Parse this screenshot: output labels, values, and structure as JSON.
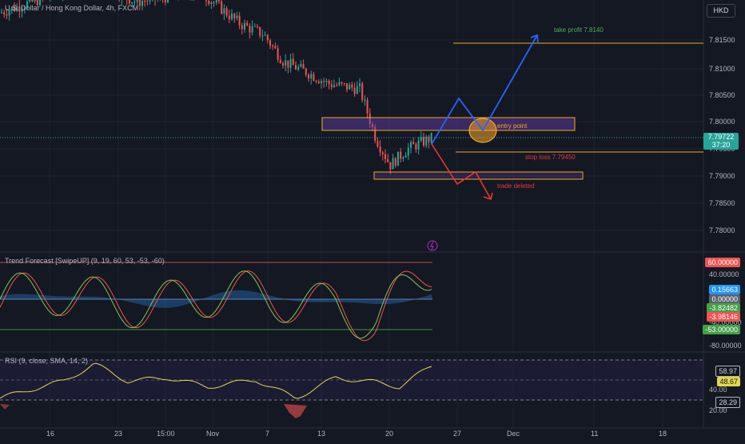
{
  "header": {
    "title": "U.S. Dollar / Hong Kong Dollar, 4h, FXCM",
    "currency_button": "HKD"
  },
  "price_axis": {
    "ticks": [
      "7.81500",
      "7.81000",
      "7.80500",
      "7.80000",
      "7.79500",
      "7.79000",
      "7.78500",
      "7.78000"
    ],
    "current_price": "7.79722",
    "countdown": "37:20"
  },
  "time_axis": {
    "ticks": [
      "16",
      "23",
      "15:00",
      "Nov",
      "7",
      "13",
      "20",
      "27",
      "Dec",
      "11",
      "18"
    ]
  },
  "annotations": {
    "take_profit": "take profit 7.8140",
    "entry": "entry point",
    "stop_loss": "stop loss 7.79450",
    "deleted": "trade deleted"
  },
  "trend_panel": {
    "title": "Trend Forecast [SwipeUP] (9, 19, 60, 53, -53, -60)",
    "ticks": [
      "40.00000",
      "0.00000",
      "-40.00000",
      "-80.00000"
    ],
    "tags": [
      "60.00000",
      "0.15663",
      "0.00000",
      "-3.82482",
      "-3.98146",
      "-53.00000"
    ]
  },
  "rsi_panel": {
    "title": "RSI (9, close, SMA, 14, 2)",
    "ticks": [
      "40.00",
      "20.00"
    ],
    "tags": [
      "58.97",
      "48.67",
      "28.29"
    ]
  },
  "colors": {
    "bg": "#141823",
    "up": "#26a69a",
    "down": "#ef5350",
    "levels": "#f5a623",
    "tp": "#4caf50",
    "blue": "#2962ff",
    "red": "#e53935",
    "rsi": "#e2d84b"
  },
  "chart_data": {
    "type": "line",
    "title": "U.S. Dollar / Hong Kong Dollar, 4h, FXCM",
    "approx_close_path": {
      "dates": [
        "Oct 16",
        "Oct 23",
        "Oct 31",
        "Nov 7",
        "Nov 10",
        "Nov 13",
        "Nov 16",
        "Nov 20",
        "Nov 24"
      ],
      "values": [
        7.822,
        7.826,
        7.821,
        7.816,
        7.809,
        7.807,
        7.803,
        7.791,
        7.797
      ]
    },
    "levels": {
      "take_profit": 7.814,
      "entry_zone": [
        7.7982,
        7.7998
      ],
      "stop_loss": 7.7945,
      "support_zone": [
        7.7899,
        7.7907
      ],
      "current": 7.79722
    },
    "ylim": [
      7.776,
      7.822
    ],
    "trend_levels": {
      "upper": 60,
      "lower": -53
    },
    "rsi_last": 58.97,
    "rsi_sma": 48.67
  }
}
